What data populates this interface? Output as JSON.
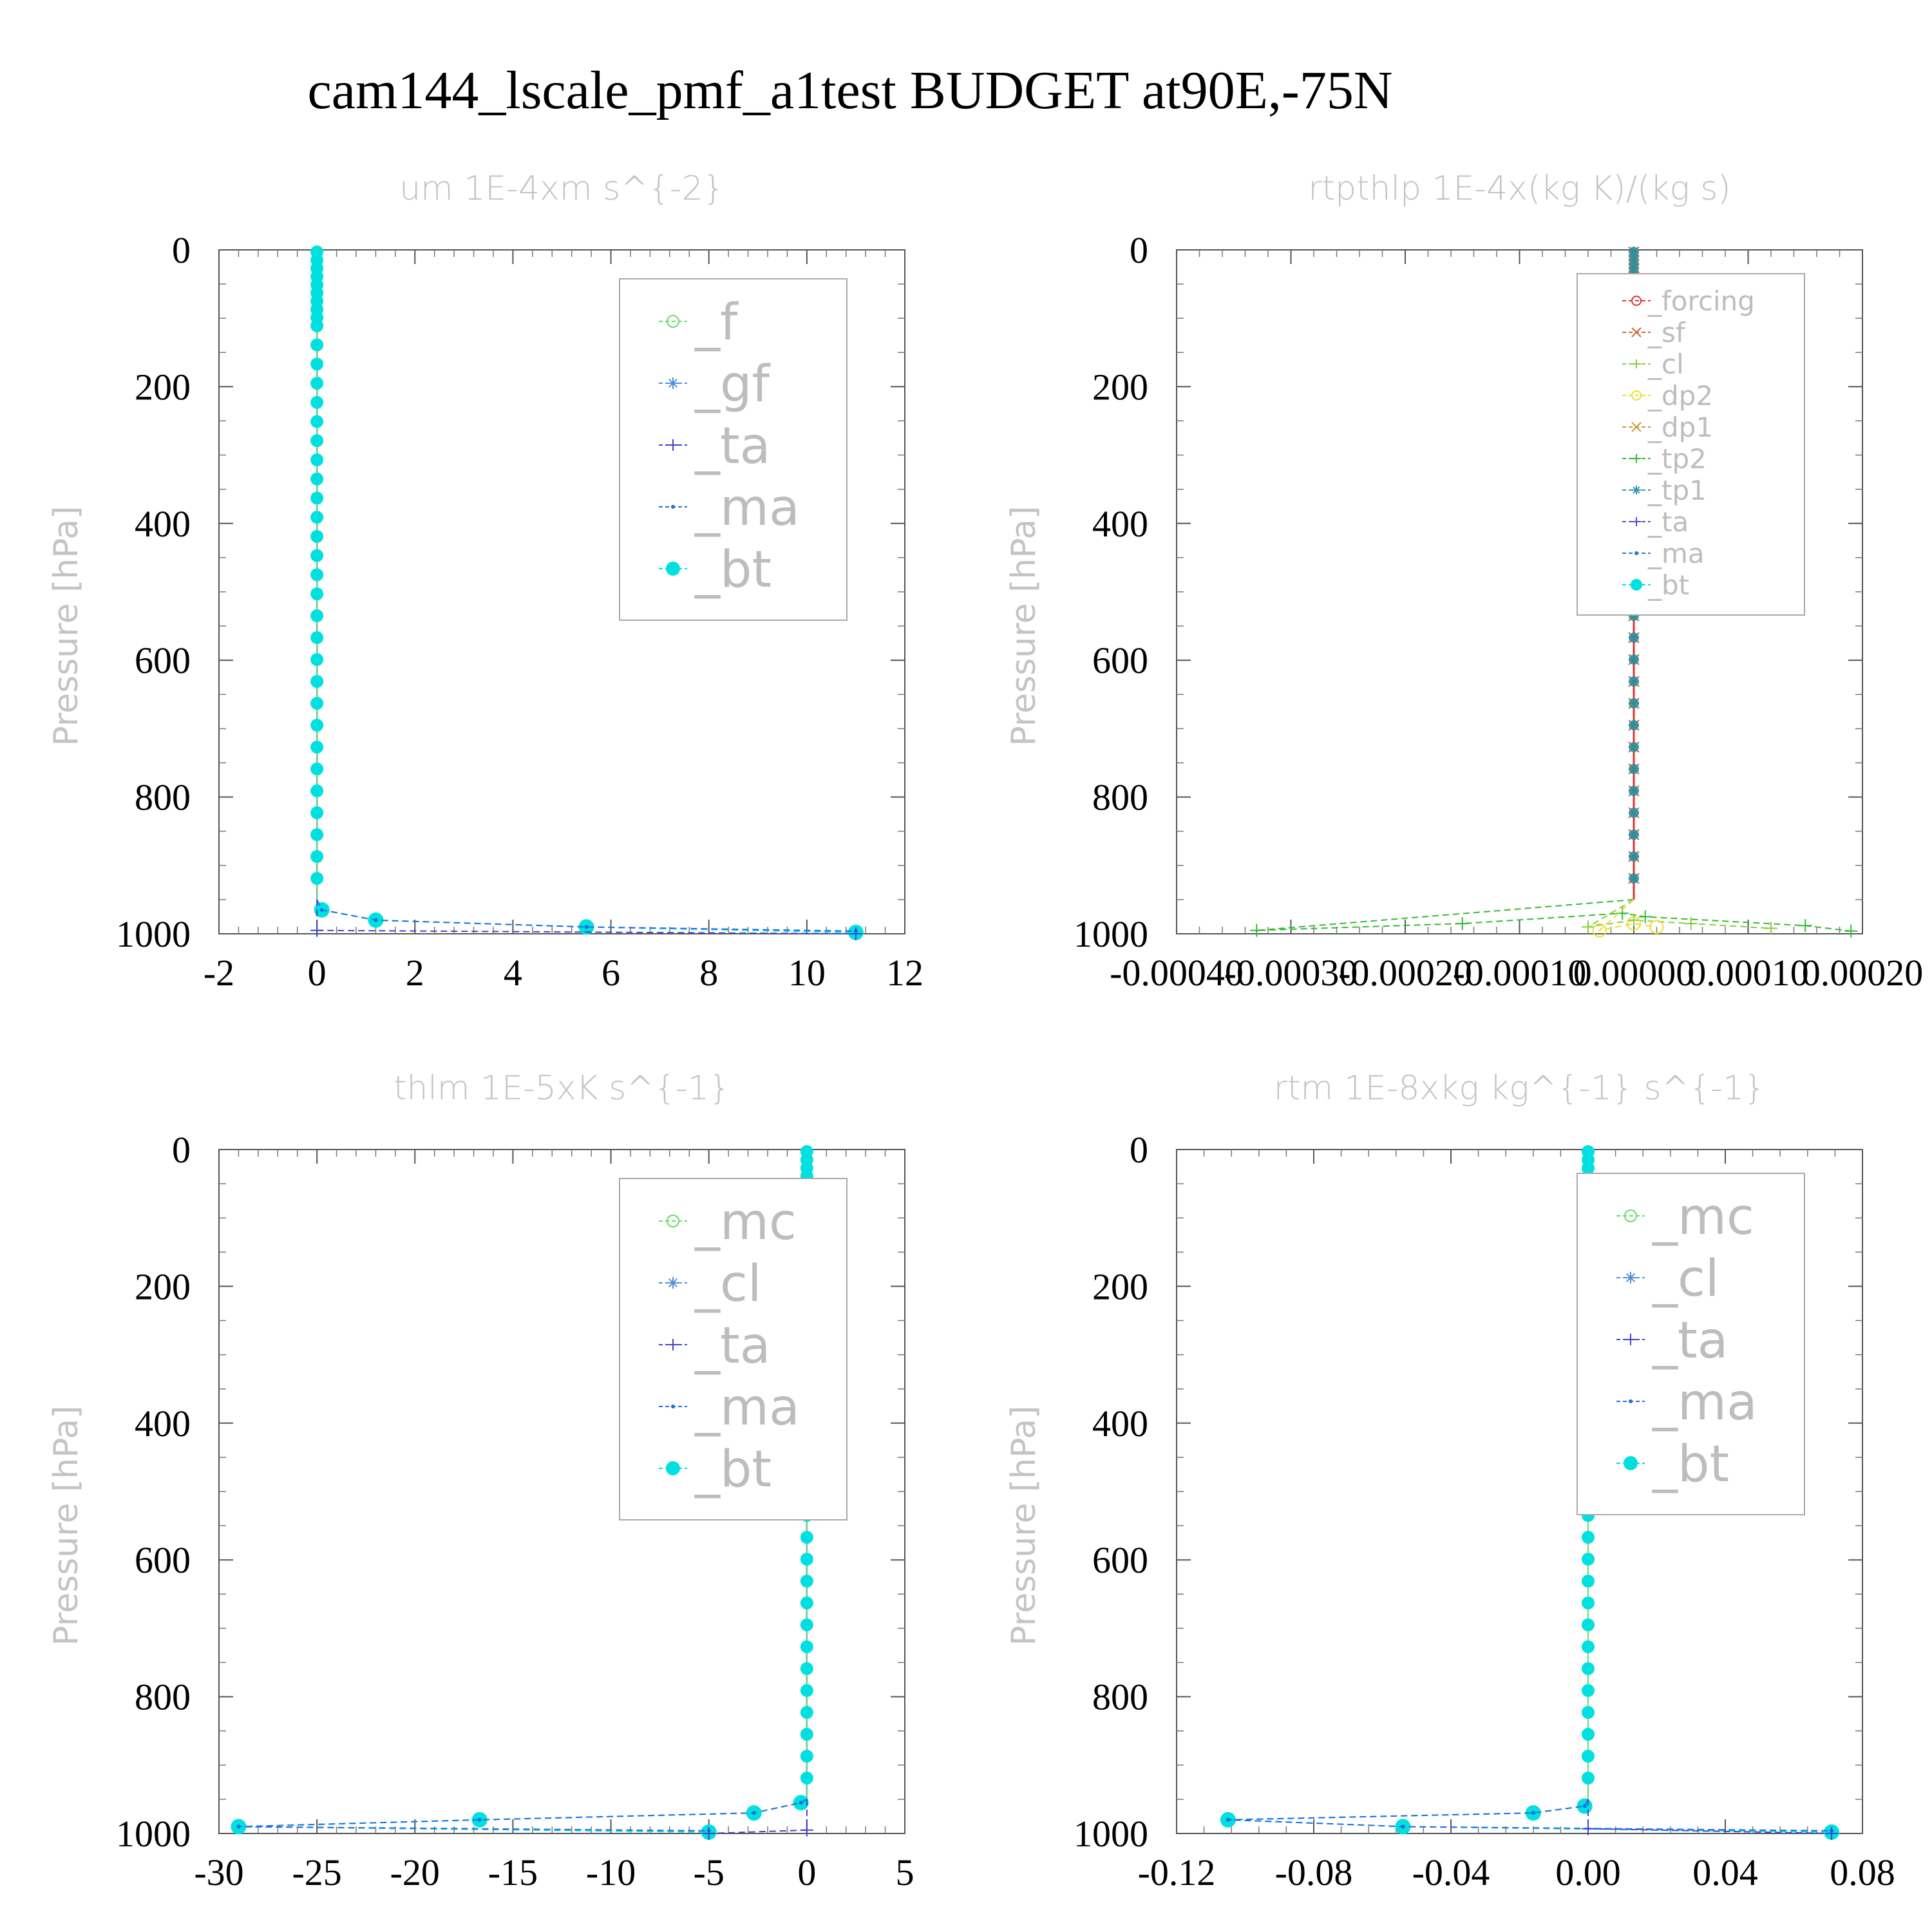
{
  "title": "cam144_lscale_pmf_a1test  BUDGET at90E,-75N",
  "chart_data": [
    {
      "type": "line",
      "title": "um  1E-4xm s^{-2}",
      "ylabel": "Pressure [hPa]",
      "ylim": [
        1000,
        0
      ],
      "xlim": [
        -2,
        12
      ],
      "xticks": [
        "-2",
        "0",
        "2",
        "4",
        "6",
        "8",
        "10",
        "12"
      ],
      "yticks": [
        "0",
        "200",
        "400",
        "600",
        "800",
        "1000"
      ],
      "grid": false,
      "legend_position": "top-right",
      "series": [
        {
          "name": "_f",
          "color": "#66dd66",
          "marker": "circle-open"
        },
        {
          "name": "_gf",
          "color": "#4f8fd8",
          "marker": "asterisk"
        },
        {
          "name": "_ta",
          "color": "#4444cc",
          "marker": "plus"
        },
        {
          "name": "_ma",
          "color": "#1f6fdd",
          "marker": "dot"
        },
        {
          "name": "_bt",
          "color": "#00e0e0",
          "marker": "circle-filled"
        }
      ],
      "near_surface": [
        {
          "series": "_bt",
          "points": [
            [
              0.1,
              965
            ],
            [
              1.2,
              980
            ],
            [
              5.5,
              990
            ],
            [
              11.0,
              998
            ]
          ]
        },
        {
          "series": "_ma",
          "points": [
            [
              0.1,
              965
            ],
            [
              1.2,
              980
            ],
            [
              5.5,
              990
            ],
            [
              11.0,
              996
            ]
          ]
        },
        {
          "series": "_ta",
          "points": [
            [
              0,
              995
            ],
            [
              11.0,
              1000
            ]
          ]
        }
      ]
    },
    {
      "type": "line",
      "title": "rtpthlp  1E-4x(kg K)/(kg s)",
      "ylabel": "Pressure [hPa]",
      "ylim": [
        1000,
        0
      ],
      "xlim": [
        -0.0004,
        0.0002
      ],
      "xticks": [
        "-0.00040",
        "-0.00030",
        "-0.00020",
        "-0.00010",
        "0.00000",
        "0.00010",
        "0.00020"
      ],
      "yticks": [
        "0",
        "200",
        "400",
        "600",
        "800",
        "1000"
      ],
      "grid": false,
      "legend_position": "top-right",
      "series": [
        {
          "name": "_forcing",
          "color": "#dd3333",
          "marker": "circle-open"
        },
        {
          "name": "_sf",
          "color": "#cc6633",
          "marker": "x"
        },
        {
          "name": "_cl",
          "color": "#88cc44",
          "marker": "plus"
        },
        {
          "name": "_dp2",
          "color": "#eedd33",
          "marker": "circle-open"
        },
        {
          "name": "_dp1",
          "color": "#cc9933",
          "marker": "x"
        },
        {
          "name": "_tp2",
          "color": "#33bb33",
          "marker": "plus"
        },
        {
          "name": "_tp1",
          "color": "#3399aa",
          "marker": "asterisk"
        },
        {
          "name": "_ta",
          "color": "#6644cc",
          "marker": "plus"
        },
        {
          "name": "_ma",
          "color": "#2277cc",
          "marker": "dot"
        },
        {
          "name": "_bt",
          "color": "#00e0e0",
          "marker": "circle-filled"
        }
      ],
      "near_surface": [
        {
          "series": "_tp2",
          "points": [
            [
              -0.00033,
              995
            ],
            [
              -0.00015,
              985
            ],
            [
              -1e-05,
              970
            ],
            [
              1e-05,
              975
            ],
            [
              0.00015,
              988
            ],
            [
              0.00019,
              996
            ]
          ]
        },
        {
          "series": "_cl",
          "points": [
            [
              -4e-05,
              990
            ],
            [
              0.0,
              980
            ],
            [
              5e-05,
              985
            ],
            [
              0.00012,
              992
            ]
          ]
        },
        {
          "series": "_dp2",
          "points": [
            [
              -3e-05,
              995
            ],
            [
              0.0,
              985
            ],
            [
              2e-05,
              990
            ]
          ]
        }
      ]
    },
    {
      "type": "line",
      "title": "thlm  1E-5xK s^{-1}",
      "ylabel": "Pressure [hPa]",
      "ylim": [
        1000,
        0
      ],
      "xlim": [
        -30,
        5
      ],
      "xticks": [
        "-30",
        "-25",
        "-20",
        "-15",
        "-10",
        "-5",
        "0",
        "5"
      ],
      "yticks": [
        "0",
        "200",
        "400",
        "600",
        "800",
        "1000"
      ],
      "grid": false,
      "legend_position": "top-right",
      "series": [
        {
          "name": "_mc",
          "color": "#66dd66",
          "marker": "circle-open"
        },
        {
          "name": "_cl",
          "color": "#4f8fd8",
          "marker": "asterisk"
        },
        {
          "name": "_ta",
          "color": "#4444cc",
          "marker": "plus"
        },
        {
          "name": "_ma",
          "color": "#1f6fdd",
          "marker": "dot"
        },
        {
          "name": "_bt",
          "color": "#00e0e0",
          "marker": "circle-filled"
        }
      ],
      "near_surface": [
        {
          "series": "_bt",
          "points": [
            [
              -0.3,
              955
            ],
            [
              -2.7,
              970
            ],
            [
              -16.7,
              980
            ],
            [
              -29.0,
              990
            ],
            [
              -5.0,
              998
            ]
          ]
        },
        {
          "series": "_ma",
          "points": [
            [
              -0.3,
              955
            ],
            [
              -2.7,
              970
            ],
            [
              -16.7,
              980
            ],
            [
              -29.0,
              990
            ],
            [
              -5.0,
              996
            ]
          ]
        },
        {
          "series": "_ta",
          "points": [
            [
              0,
              995
            ],
            [
              -5.0,
              1000
            ]
          ]
        }
      ]
    },
    {
      "type": "line",
      "title": "rtm  1E-8xkg kg^{-1} s^{-1}",
      "ylabel": "Pressure [hPa]",
      "ylim": [
        1000,
        0
      ],
      "xlim": [
        -0.12,
        0.08
      ],
      "xticks": [
        "-0.12",
        "-0.08",
        "-0.04",
        "0.00",
        "0.04",
        "0.08"
      ],
      "yticks": [
        "0",
        "200",
        "400",
        "600",
        "800",
        "1000"
      ],
      "grid": false,
      "legend_position": "top-right",
      "series": [
        {
          "name": "_mc",
          "color": "#66dd66",
          "marker": "circle-open"
        },
        {
          "name": "_cl",
          "color": "#4f8fd8",
          "marker": "asterisk"
        },
        {
          "name": "_ta",
          "color": "#4444cc",
          "marker": "plus"
        },
        {
          "name": "_ma",
          "color": "#1f6fdd",
          "marker": "dot"
        },
        {
          "name": "_bt",
          "color": "#00e0e0",
          "marker": "circle-filled"
        }
      ],
      "near_surface": [
        {
          "series": "_bt",
          "points": [
            [
              -0.001,
              960
            ],
            [
              -0.016,
              970
            ],
            [
              -0.105,
              980
            ],
            [
              -0.054,
              990
            ],
            [
              0.071,
              998
            ]
          ]
        },
        {
          "series": "_ma",
          "points": [
            [
              -0.001,
              960
            ],
            [
              -0.016,
              970
            ],
            [
              -0.105,
              980
            ],
            [
              -0.054,
              990
            ],
            [
              0.071,
              996
            ]
          ]
        },
        {
          "series": "_ta",
          "points": [
            [
              0,
              993
            ],
            [
              0.071,
              1000
            ]
          ]
        }
      ]
    }
  ]
}
